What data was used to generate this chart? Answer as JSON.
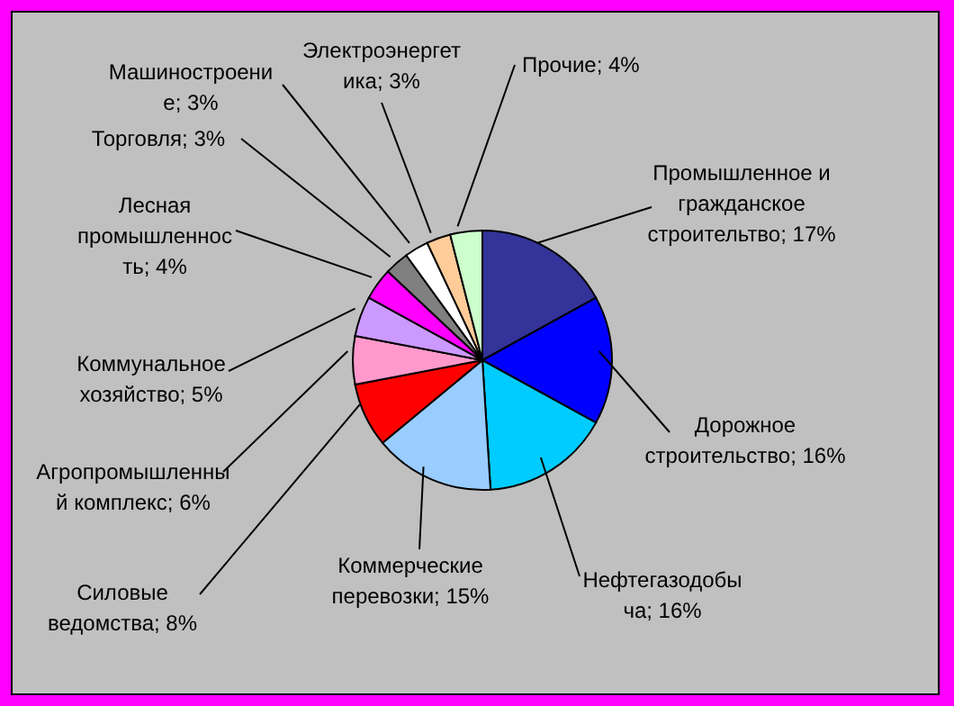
{
  "chart_data": {
    "type": "pie",
    "categories": [
      "Промышленное и гражданское строительтво",
      "Дорожное строительство",
      "Нефтегазодобыча",
      "Коммерческие перевозки",
      "Силовые ведомства",
      "Агропромышленный комплекс",
      "Коммунальное хозяйство",
      "Лесная промышленность",
      "Торговля",
      "Машиностроение",
      "Электроэнергетика",
      "Прочие"
    ],
    "values": [
      17,
      16,
      16,
      15,
      8,
      6,
      5,
      4,
      3,
      3,
      3,
      4
    ],
    "value_labels": [
      "17%",
      "16%",
      "16%",
      "15%",
      "8%",
      "6%",
      "5%",
      "4%",
      "3%",
      "3%",
      "3%",
      "4%"
    ],
    "colors": [
      "#333399",
      "#0000ff",
      "#00ccff",
      "#99ccff",
      "#ff0000",
      "#ff99cc",
      "#cc99ff",
      "#ff00ff",
      "#808080",
      "#ffffff",
      "#ffcc99",
      "#ccffcc"
    ]
  }
}
